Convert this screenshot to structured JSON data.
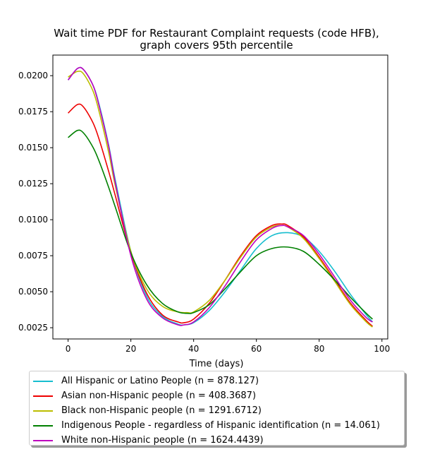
{
  "chart_data": {
    "type": "line",
    "title": "Wait time PDF for Restaurant Complaint  requests (code HFB),\ngraph covers 95th percentile",
    "xlabel": "Time (days)",
    "ylabel": "",
    "xlim": [
      -4.85,
      101.85
    ],
    "ylim": [
      0.00172,
      0.02143
    ],
    "xticks": [
      0,
      20,
      40,
      60,
      80,
      100
    ],
    "yticks": [
      0.0025,
      0.005,
      0.0075,
      0.01,
      0.0125,
      0.015,
      0.0175,
      0.02
    ],
    "ytick_labels": [
      "0.0025",
      "0.0050",
      "0.0075",
      "0.0100",
      "0.0125",
      "0.0150",
      "0.0175",
      "0.0200"
    ],
    "grid": false,
    "legend_position": "below",
    "series": [
      {
        "name": "All Hispanic or Latino People (n = 878.127)",
        "color": "#17becf",
        "x": [
          0,
          3,
          5,
          8,
          10,
          13,
          15,
          20,
          25,
          30,
          35,
          37,
          40,
          45,
          50,
          55,
          60,
          65,
          70,
          75,
          80,
          85,
          90,
          95,
          97
        ],
        "y": [
          0.0197,
          0.0205,
          0.0204,
          0.0193,
          0.0179,
          0.0151,
          0.0128,
          0.0078,
          0.0047,
          0.0033,
          0.00275,
          0.0027,
          0.00285,
          0.0037,
          0.005,
          0.0065,
          0.008,
          0.0089,
          0.0091,
          0.0088,
          0.0078,
          0.0064,
          0.0048,
          0.0034,
          0.0029
        ]
      },
      {
        "name": "Asian non-Hispanic people (n = 408.3687)",
        "color": "#ee0000",
        "x": [
          0,
          3,
          5,
          8,
          10,
          13,
          15,
          20,
          25,
          30,
          35,
          37,
          40,
          45,
          50,
          55,
          60,
          65,
          68,
          70,
          75,
          80,
          85,
          90,
          95,
          97
        ],
        "y": [
          0.0174,
          0.018,
          0.0178,
          0.0167,
          0.0155,
          0.0133,
          0.0117,
          0.0077,
          0.0049,
          0.0034,
          0.0029,
          0.00285,
          0.0031,
          0.0042,
          0.0058,
          0.0075,
          0.0089,
          0.0096,
          0.0097,
          0.0096,
          0.0088,
          0.0074,
          0.0058,
          0.0042,
          0.003,
          0.0026
        ]
      },
      {
        "name": "Black non-Hispanic people (n = 1291.6712)",
        "color": "#bcbd00",
        "x": [
          0,
          3,
          5,
          8,
          10,
          13,
          15,
          20,
          25,
          30,
          35,
          38,
          40,
          45,
          50,
          55,
          60,
          65,
          68,
          70,
          75,
          80,
          85,
          90,
          95,
          97
        ],
        "y": [
          0.0199,
          0.0203,
          0.0201,
          0.0189,
          0.0174,
          0.0146,
          0.0124,
          0.0078,
          0.0052,
          0.004,
          0.0036,
          0.00355,
          0.0036,
          0.0044,
          0.0058,
          0.0074,
          0.0088,
          0.0095,
          0.0096,
          0.0095,
          0.0087,
          0.0073,
          0.0057,
          0.0041,
          0.0029,
          0.00255
        ]
      },
      {
        "name": "Indigenous People - regardless of Hispanic identification (n = 14.061)",
        "color": "#008000",
        "x": [
          0,
          3,
          5,
          8,
          10,
          13,
          15,
          20,
          25,
          30,
          35,
          38,
          40,
          45,
          50,
          55,
          60,
          65,
          70,
          75,
          80,
          85,
          90,
          95,
          97
        ],
        "y": [
          0.0157,
          0.0162,
          0.016,
          0.015,
          0.014,
          0.0122,
          0.0109,
          0.0077,
          0.0055,
          0.0042,
          0.0036,
          0.0035,
          0.00355,
          0.0041,
          0.0052,
          0.0064,
          0.0075,
          0.008,
          0.0081,
          0.0078,
          0.0069,
          0.0058,
          0.0046,
          0.0035,
          0.0031
        ]
      },
      {
        "name": "White non-Hispanic people (n = 1624.4439)",
        "color": "#bf00bf",
        "x": [
          0,
          3,
          5,
          8,
          10,
          13,
          15,
          20,
          25,
          30,
          35,
          37,
          40,
          45,
          50,
          55,
          60,
          65,
          68,
          70,
          75,
          80,
          85,
          90,
          95,
          97
        ],
        "y": [
          0.0197,
          0.0205,
          0.0204,
          0.0193,
          0.0178,
          0.015,
          0.0126,
          0.0075,
          0.0045,
          0.0032,
          0.0027,
          0.0027,
          0.0029,
          0.0039,
          0.0054,
          0.0071,
          0.0086,
          0.0094,
          0.0096,
          0.0095,
          0.0089,
          0.0076,
          0.006,
          0.0044,
          0.0032,
          0.0029
        ]
      }
    ]
  }
}
